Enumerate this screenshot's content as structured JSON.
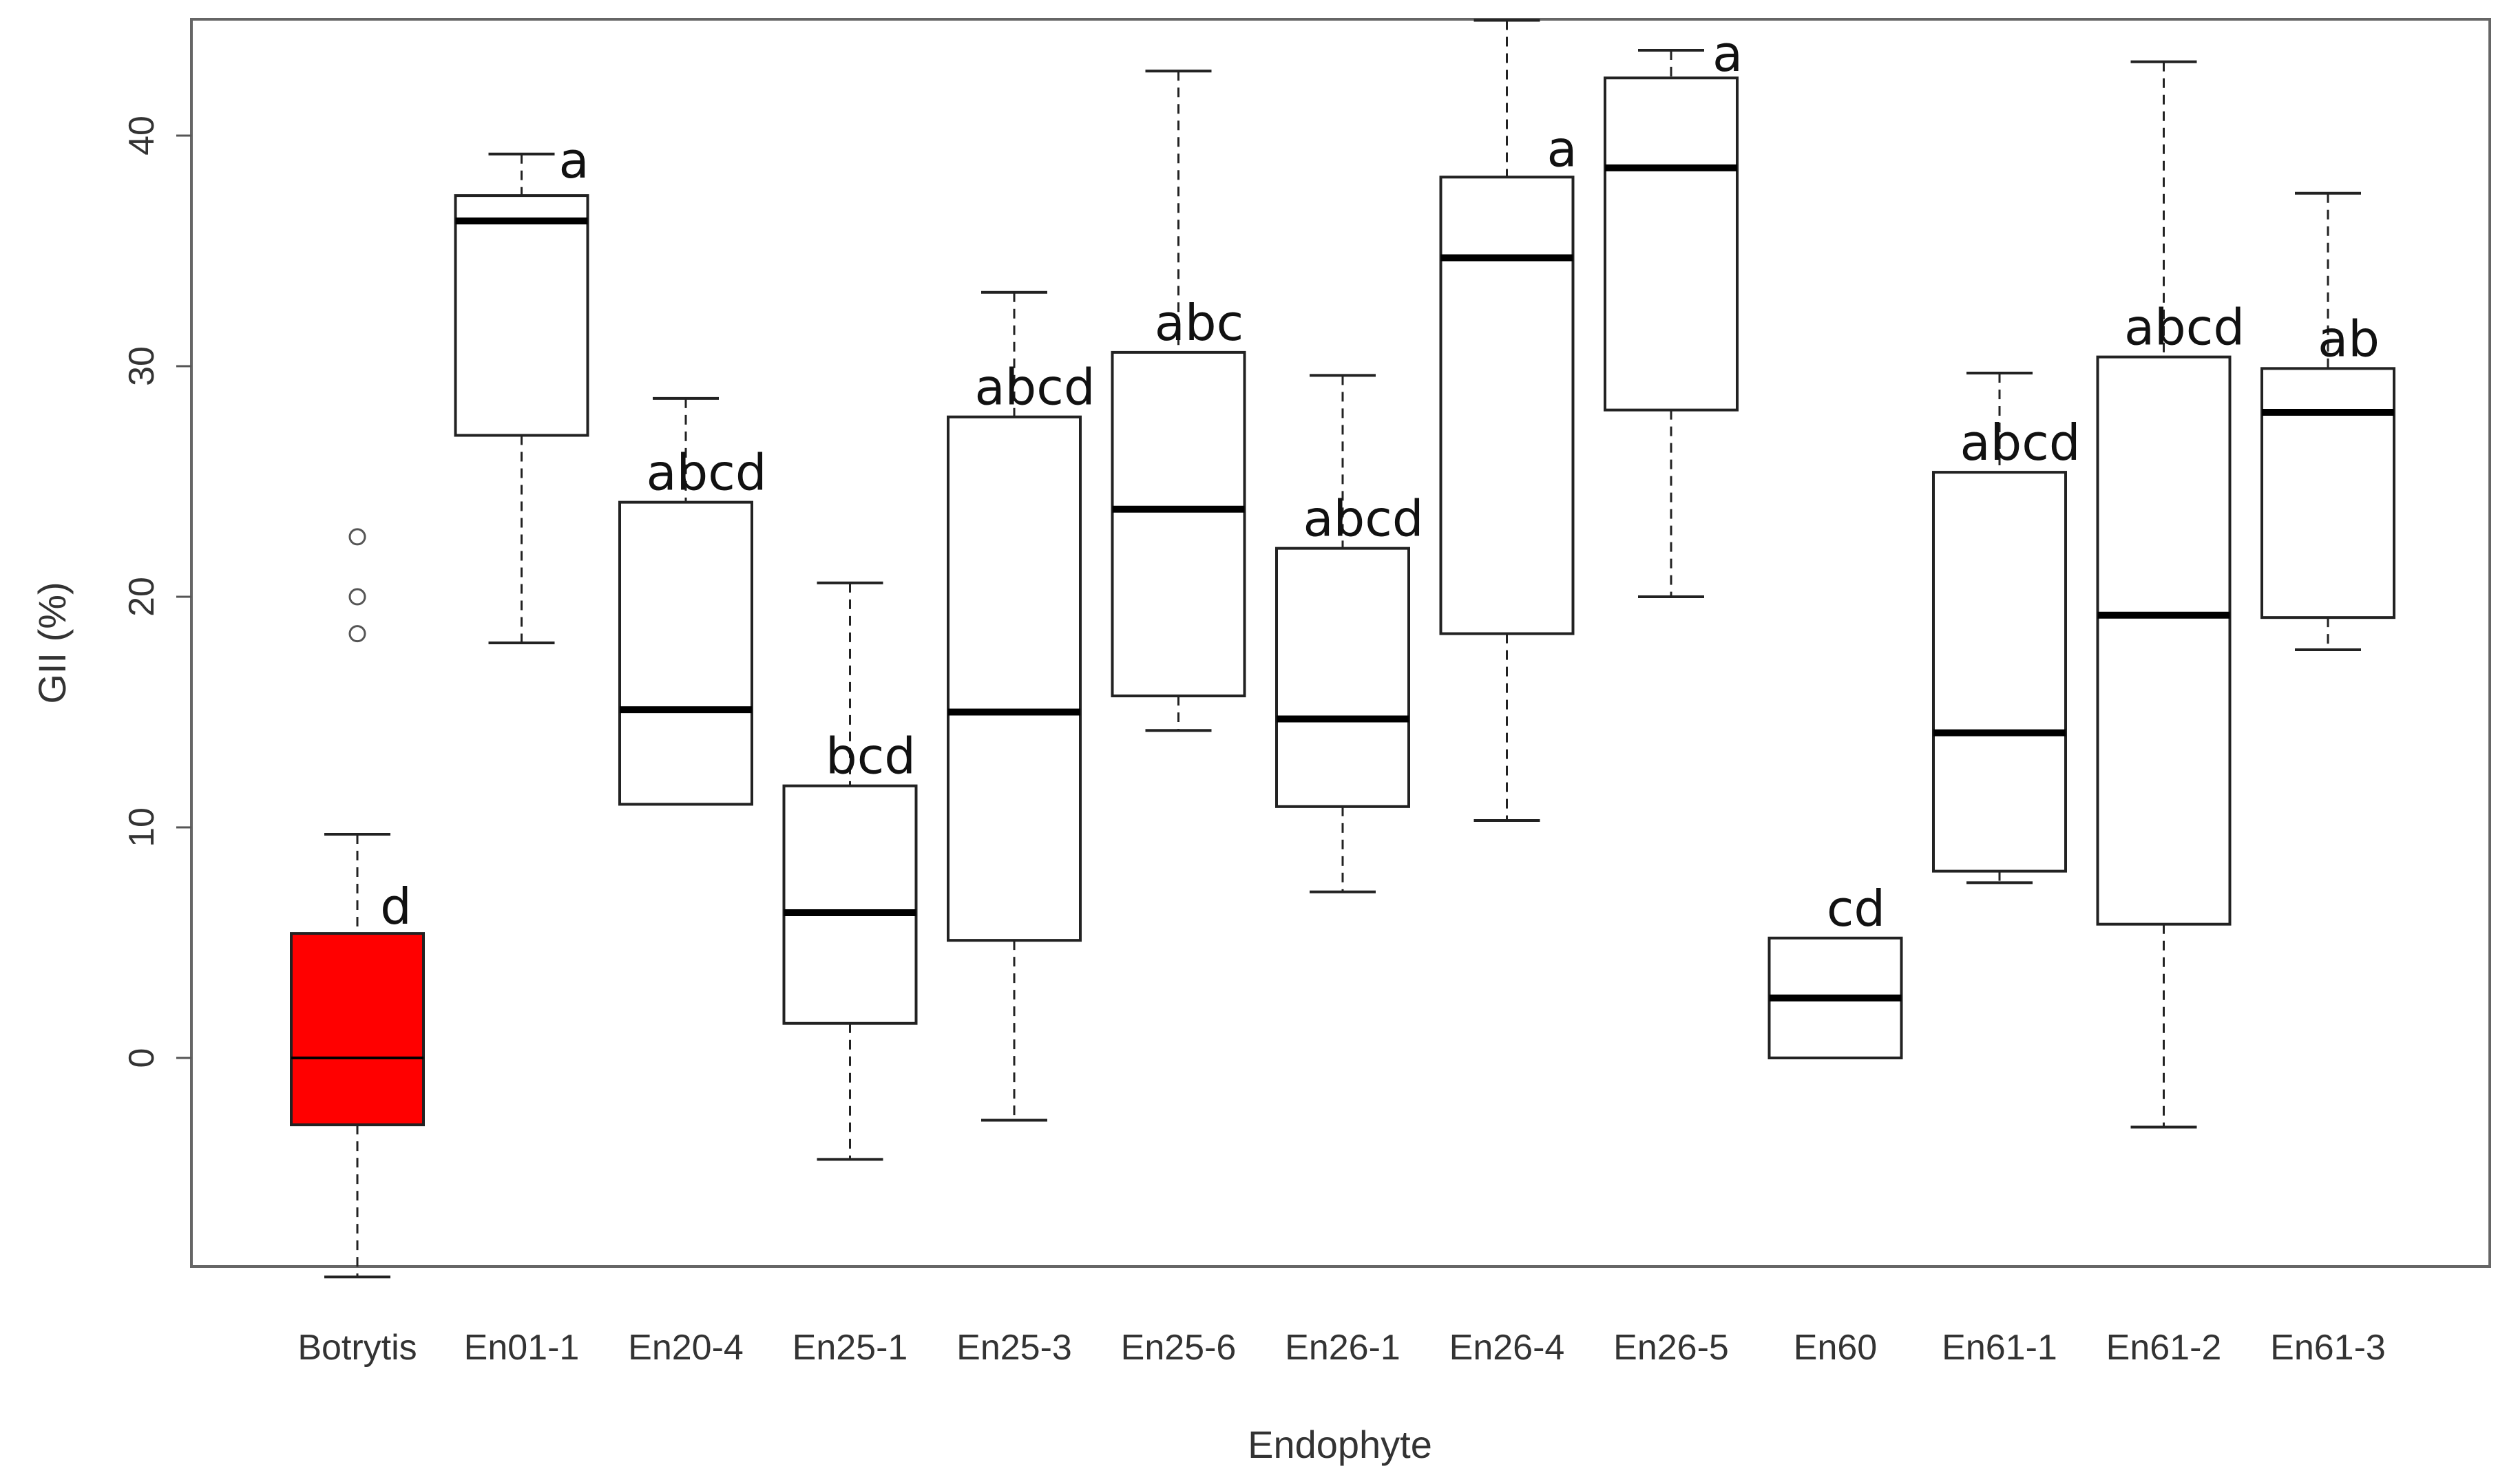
{
  "chart_data": {
    "type": "boxplot",
    "xlabel": "Endophyte",
    "ylabel": "GII (%)",
    "ylim": [
      -9.5,
      45
    ],
    "yticks": [
      0,
      10,
      20,
      30,
      40
    ],
    "grid": false,
    "categories": [
      "Botrytis",
      "En01-1",
      "En20-4",
      "En25-1",
      "En25-3",
      "En25-6",
      "En26-1",
      "En26-4",
      "En26-5",
      "En60",
      "En61-1",
      "En61-2",
      "En61-3"
    ],
    "boxes": [
      {
        "category": "Botrytis",
        "min": -9.5,
        "q1": -2.9,
        "median": 0.0,
        "q3": 5.4,
        "max": 9.7,
        "outliers": [
          18.4,
          20.0,
          22.6
        ],
        "fill": "#ff0000",
        "letter": "d"
      },
      {
        "category": "En01-1",
        "min": 18.0,
        "q1": 27.0,
        "median": 36.3,
        "q3": 37.4,
        "max": 39.2,
        "outliers": [],
        "fill": "#ffffff",
        "letter": "a"
      },
      {
        "category": "En20-4",
        "min": 11.0,
        "q1": 11.0,
        "median": 15.1,
        "q3": 24.1,
        "max": 28.6,
        "outliers": [],
        "fill": "#ffffff",
        "letter": "abcd"
      },
      {
        "category": "En25-1",
        "min": -4.4,
        "q1": 1.5,
        "median": 6.3,
        "q3": 11.8,
        "max": 20.6,
        "outliers": [],
        "fill": "#ffffff",
        "letter": "bcd"
      },
      {
        "category": "En25-3",
        "min": -2.7,
        "q1": 5.1,
        "median": 15.0,
        "q3": 27.8,
        "max": 33.2,
        "outliers": [],
        "fill": "#ffffff",
        "letter": "abcd"
      },
      {
        "category": "En25-6",
        "min": 14.2,
        "q1": 15.7,
        "median": 23.8,
        "q3": 30.6,
        "max": 42.8,
        "outliers": [],
        "fill": "#ffffff",
        "letter": "abc"
      },
      {
        "category": "En26-1",
        "min": 7.2,
        "q1": 10.9,
        "median": 14.7,
        "q3": 22.1,
        "max": 29.6,
        "outliers": [],
        "fill": "#ffffff",
        "letter": "abcd"
      },
      {
        "category": "En26-4",
        "min": 10.3,
        "q1": 18.4,
        "median": 34.7,
        "q3": 38.2,
        "max": 45.0,
        "outliers": [],
        "fill": "#ffffff",
        "letter": "a"
      },
      {
        "category": "En26-5",
        "min": 20.0,
        "q1": 28.1,
        "median": 38.6,
        "q3": 42.5,
        "max": 43.7,
        "outliers": [],
        "fill": "#ffffff",
        "letter": "a"
      },
      {
        "category": "En60",
        "min": 0.0,
        "q1": 0.0,
        "median": 2.6,
        "q3": 5.2,
        "max": 5.2,
        "outliers": [],
        "fill": "#ffffff",
        "letter": "cd"
      },
      {
        "category": "En61-1",
        "min": 7.6,
        "q1": 8.1,
        "median": 14.1,
        "q3": 25.4,
        "max": 29.7,
        "outliers": [],
        "fill": "#ffffff",
        "letter": "abcd"
      },
      {
        "category": "En61-2",
        "min": -3.0,
        "q1": 5.8,
        "median": 19.2,
        "q3": 30.4,
        "max": 43.2,
        "outliers": [],
        "fill": "#ffffff",
        "letter": "abcd"
      },
      {
        "category": "En61-3",
        "min": 17.7,
        "q1": 19.1,
        "median": 28.0,
        "q3": 29.9,
        "max": 37.5,
        "outliers": [],
        "fill": "#ffffff",
        "letter": "ab"
      }
    ]
  }
}
